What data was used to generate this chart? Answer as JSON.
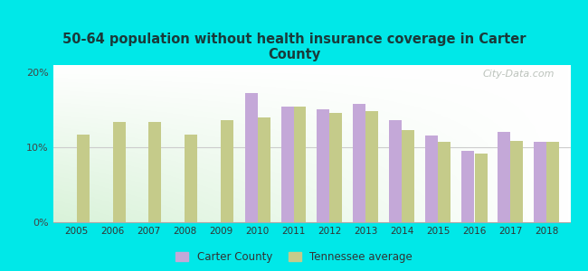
{
  "title": "50-64 population without health insurance coverage in Carter\nCounty",
  "years": [
    2005,
    2006,
    2007,
    2008,
    2009,
    2010,
    2011,
    2012,
    2013,
    2014,
    2015,
    2016,
    2017,
    2018
  ],
  "carter_county": [
    null,
    null,
    null,
    null,
    null,
    17.2,
    15.5,
    15.1,
    15.8,
    13.6,
    11.6,
    9.5,
    12.1,
    10.8
  ],
  "tennessee_avg": [
    11.7,
    13.4,
    13.4,
    11.7,
    13.6,
    14.0,
    15.5,
    14.6,
    14.8,
    12.3,
    10.7,
    9.2,
    10.9,
    10.7
  ],
  "carter_color": "#c4a8d8",
  "tn_color": "#c5cb8a",
  "background_color": "#00e8e8",
  "ylim": [
    0,
    21
  ],
  "yticks": [
    0,
    10,
    20
  ],
  "ytick_labels": [
    "0%",
    "10%",
    "20%"
  ],
  "watermark": "City-Data.com",
  "bar_width": 0.35,
  "legend_carter": "Carter County",
  "legend_tn": "Tennessee average"
}
